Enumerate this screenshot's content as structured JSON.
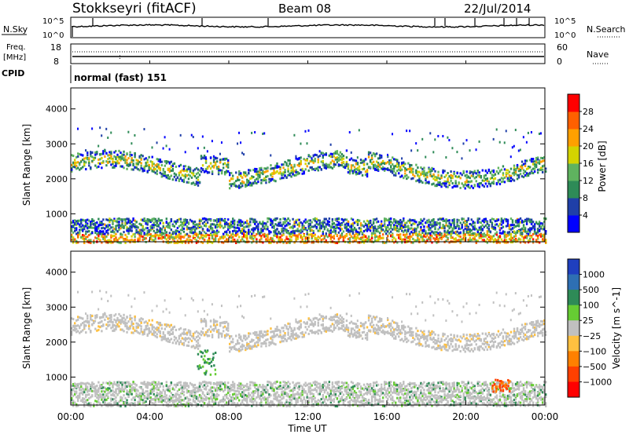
{
  "header": {
    "station": "Stokkseyri (fitACF)",
    "beam": "Beam 08",
    "date": "22/Jul/2014"
  },
  "top_panels": {
    "nsky_label": "N.Sky",
    "nsky_tick_top": "10^5",
    "nsky_tick_bottom": "10^0",
    "nsearch_label": "N.Search",
    "nsearch_tick_top": "10^5",
    "nsearch_tick_bottom": "10^0",
    "freq_label_1": "Freq.",
    "freq_label_2": "[MHz]",
    "freq_tick_top": "18",
    "freq_tick_bottom": "8",
    "nave_label": "Nave",
    "nave_tick_top": "60",
    "nave_tick_bottom": "0",
    "cpid_label": "CPID",
    "cpid_value": "normal (fast) 151"
  },
  "chart_data": [
    {
      "type": "heatmap",
      "name": "power",
      "ylabel": "Slant Range [km]",
      "ylim": [
        200,
        4600
      ],
      "yticks": [
        1000,
        2000,
        3000,
        4000
      ],
      "colorbar_label": "Power [dB]",
      "colorbar_ticks": [
        "4",
        "8",
        "12",
        "16",
        "20",
        "24",
        "28"
      ],
      "colorbar_colors": [
        "#0000ff",
        "#1f3fa8",
        "#2e8b57",
        "#5fb35f",
        "#d4d400",
        "#ffa000",
        "#ff6000",
        "#ff0000"
      ]
    },
    {
      "type": "heatmap",
      "name": "velocity",
      "ylabel": "Slant Range [km]",
      "ylim": [
        200,
        4600
      ],
      "yticks": [
        1000,
        2000,
        3000,
        4000
      ],
      "colorbar_label": "Velocity [m s^-1]",
      "colorbar_ticks": [
        "1000",
        "500",
        "100",
        "25",
        "−25",
        "−100",
        "−500",
        "−1000"
      ],
      "colorbar_colors": [
        "#1f3fbf",
        "#2e6fb3",
        "#2e8b57",
        "#66cc33",
        "#c0c0c0",
        "#ffc040",
        "#ff8000",
        "#ff4000",
        "#ff0000"
      ]
    }
  ],
  "xaxis": {
    "label": "Time UT",
    "ticks": [
      "00:00",
      "04:00",
      "08:00",
      "12:00",
      "16:00",
      "20:00",
      "00:00"
    ]
  }
}
